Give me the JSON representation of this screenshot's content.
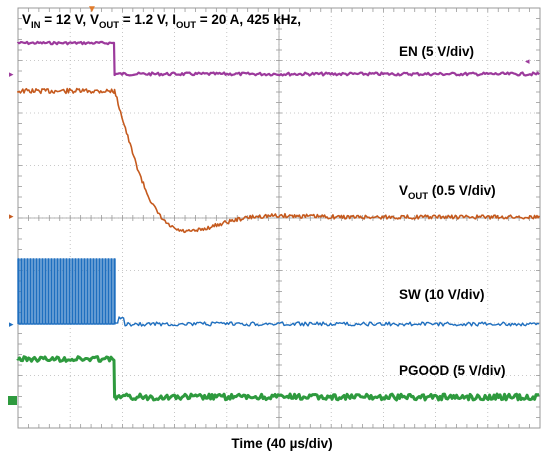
{
  "chart_data": {
    "type": "line",
    "title_parts": {
      "v": "V",
      "in": "IN",
      "eq_in": " = 12 V, ",
      "vout_v": "V",
      "vout_sub": "OUT",
      "eq_vout": " = 1.2 V, ",
      "i": "I",
      "i_sub": "OUT",
      "eq_i": " = 20 A, 425 kHz,"
    },
    "xlabel": "Time (40 µs/div)",
    "x_divisions": 10,
    "y_divisions": 8,
    "grid": true,
    "series": [
      {
        "name": "EN (5 V/div)",
        "label_main": "EN (5 V/div)",
        "color": "#9c3a9c",
        "volts_per_div": 5,
        "high": 5,
        "low": 0,
        "fall_time_div": 1.85
      },
      {
        "name": "VOUT (0.5 V/div)",
        "label_main": "V",
        "label_sub": "OUT",
        "label_rest": " (0.5 V/div)",
        "color": "#c55a1e",
        "volts_per_div": 0.5,
        "initial": 1.2,
        "final": 0,
        "undershoot_min": -0.47,
        "overshoot_peak": 0.18,
        "fall_start_div": 1.85
      },
      {
        "name": "SW (10 V/div)",
        "label_main": "SW (10 V/div)",
        "color": "#1f6fbf",
        "volts_per_div": 10,
        "pulse_high": 12,
        "low": 0,
        "switching_until_div": 1.85
      },
      {
        "name": "PGOOD (5 V/div)",
        "label_main": "PGOOD (5 V/div)",
        "color": "#2e9a3e",
        "volts_per_div": 5,
        "high": 5,
        "low": 0,
        "fall_time_div": 1.85
      }
    ],
    "markers": {
      "trigger": "▼",
      "left_arrow": "▸",
      "right_arrow": "◂",
      "ch_marker": "▸"
    }
  }
}
